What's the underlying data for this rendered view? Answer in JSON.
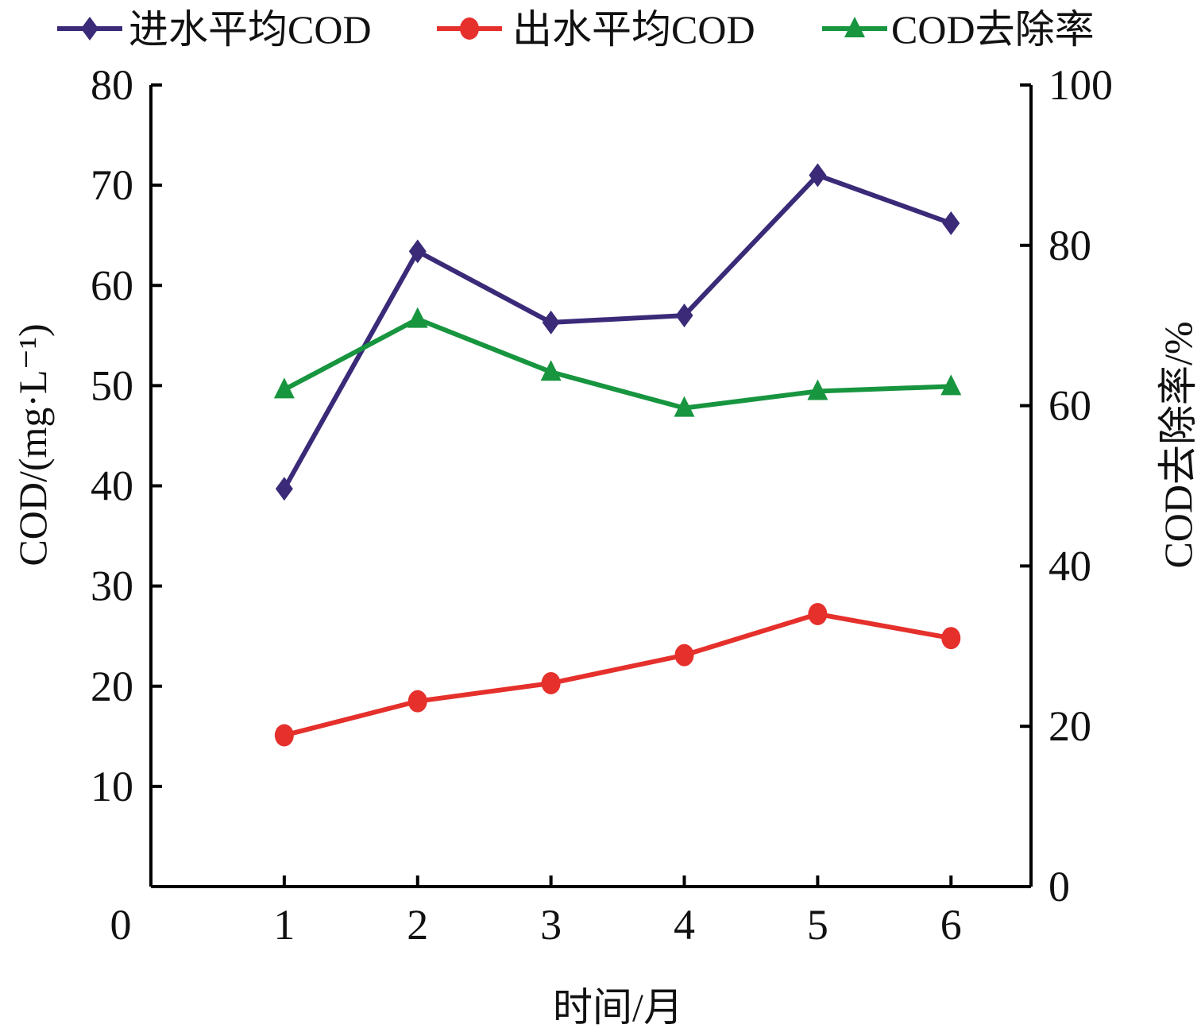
{
  "chart_data": {
    "type": "line",
    "title": "",
    "xlabel": "时间/月",
    "ylabel": "COD/(mg·L⁻¹)",
    "y2label": "COD去除率/%",
    "x": [
      1,
      2,
      3,
      4,
      5,
      6
    ],
    "xlim": [
      0,
      6.6
    ],
    "ylim": [
      0,
      80
    ],
    "y2lim": [
      0,
      100
    ],
    "xticks": [
      "0",
      "1",
      "2",
      "3",
      "4",
      "5",
      "6"
    ],
    "yticks": [
      "10",
      "20",
      "30",
      "40",
      "50",
      "60",
      "70",
      "80"
    ],
    "y2ticks": [
      "0",
      "20",
      "40",
      "60",
      "80",
      "100"
    ],
    "grid": false,
    "legend_position": "top",
    "series": [
      {
        "name": "进水平均COD",
        "axis": "left",
        "marker": "diamond",
        "color": "#3a2a78",
        "values": [
          39.7,
          63.4,
          56.3,
          57.0,
          71.0,
          66.2
        ]
      },
      {
        "name": "出水平均COD",
        "axis": "left",
        "marker": "circle",
        "color": "#e5302c",
        "values": [
          15.1,
          18.5,
          20.3,
          23.1,
          27.2,
          24.8
        ]
      },
      {
        "name": "COD去除率",
        "axis": "right",
        "marker": "triangle",
        "color": "#17953f",
        "values": [
          62.0,
          70.8,
          64.2,
          59.7,
          61.8,
          62.4
        ]
      }
    ]
  }
}
